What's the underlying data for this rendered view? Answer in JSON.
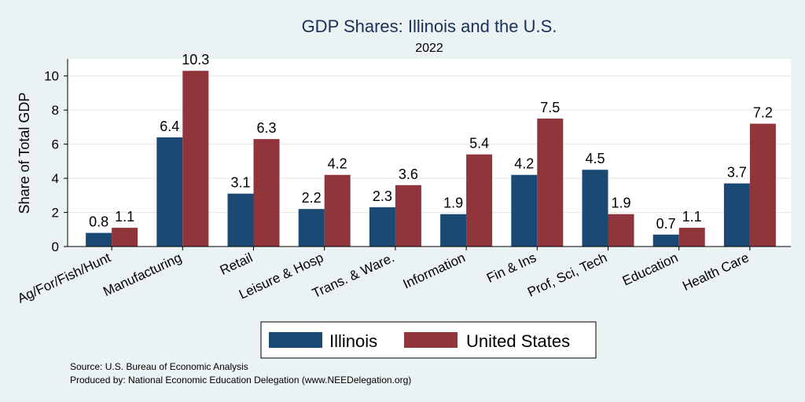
{
  "chart_data": {
    "type": "bar",
    "title": "GDP Shares: Illinois and the U.S.",
    "subtitle": "2022",
    "ylabel": "Share of Total GDP",
    "xlabel": "",
    "ylim": [
      0,
      11
    ],
    "yticks": [
      0,
      2,
      4,
      6,
      8,
      10
    ],
    "grid": true,
    "legend_position": "bottom",
    "categories": [
      "Ag/For/Fish/Hunt",
      "Manufacturing",
      "Retail",
      "Leisure & Hosp",
      "Trans. & Ware.",
      "Information",
      "Fin & Ins",
      "Prof, Sci, Tech",
      "Education",
      "Health Care"
    ],
    "series": [
      {
        "name": "Illinois",
        "color": "#1a4a73",
        "values": [
          0.8,
          6.4,
          3.1,
          2.2,
          2.3,
          1.9,
          4.2,
          4.5,
          0.7,
          3.7
        ]
      },
      {
        "name": "United States",
        "color": "#90353b",
        "values": [
          1.1,
          10.3,
          6.3,
          4.2,
          3.6,
          5.4,
          7.5,
          1.9,
          1.1,
          7.2
        ]
      }
    ]
  },
  "footer": {
    "source": "Source: U.S. Bureau of Economic Analysis",
    "produced_by": "Produced by: National Economic Education Delegation (www.NEEDelegation.org)"
  }
}
